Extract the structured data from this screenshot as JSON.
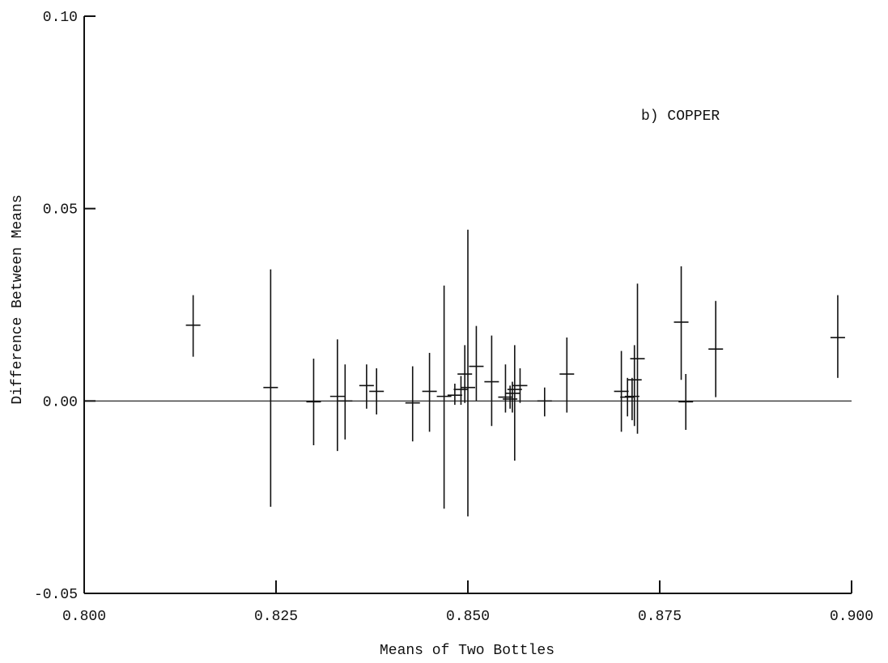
{
  "chart_data": {
    "type": "scatter",
    "title": "",
    "annotation": "b) COPPER",
    "xlabel": "Means of Two Bottles",
    "ylabel": "Difference Between Means",
    "xlim": [
      0.8,
      0.9
    ],
    "ylim": [
      -0.05,
      0.1
    ],
    "x_ticks": [
      0.8,
      0.825,
      0.85,
      0.875,
      0.9
    ],
    "x_tick_labels": [
      "0.800",
      "0.825",
      "0.850",
      "0.875",
      "0.900"
    ],
    "y_ticks": [
      -0.05,
      0.0,
      0.05,
      0.1
    ],
    "y_tick_labels": [
      "-0.05",
      "0.00",
      "0.05",
      "0.10"
    ],
    "reference_line_y": 0.0,
    "grid": false,
    "legend": "none",
    "points": [
      {
        "x": 0.8142,
        "y": 0.0197,
        "y_low": 0.0115,
        "y_high": 0.0275
      },
      {
        "x": 0.8243,
        "y": 0.0035,
        "y_low": -0.0275,
        "y_high": 0.0342
      },
      {
        "x": 0.8299,
        "y": -0.0002,
        "y_low": -0.0115,
        "y_high": 0.011
      },
      {
        "x": 0.833,
        "y": 0.0012,
        "y_low": -0.013,
        "y_high": 0.016
      },
      {
        "x": 0.834,
        "y": 0.0,
        "y_low": -0.01,
        "y_high": 0.0095
      },
      {
        "x": 0.8368,
        "y": 0.004,
        "y_low": -0.002,
        "y_high": 0.0095
      },
      {
        "x": 0.8381,
        "y": 0.0025,
        "y_low": -0.0035,
        "y_high": 0.0085
      },
      {
        "x": 0.8428,
        "y": -0.0005,
        "y_low": -0.0105,
        "y_high": 0.009
      },
      {
        "x": 0.845,
        "y": 0.0025,
        "y_low": -0.008,
        "y_high": 0.0125
      },
      {
        "x": 0.8469,
        "y": 0.0012,
        "y_low": -0.028,
        "y_high": 0.03
      },
      {
        "x": 0.8483,
        "y": 0.0015,
        "y_low": -0.001,
        "y_high": 0.0045
      },
      {
        "x": 0.8491,
        "y": 0.003,
        "y_low": -0.001,
        "y_high": 0.0065
      },
      {
        "x": 0.8496,
        "y": 0.007,
        "y_low": -0.0005,
        "y_high": 0.0145
      },
      {
        "x": 0.85,
        "y": 0.0035,
        "y_low": -0.03,
        "y_high": 0.0445
      },
      {
        "x": 0.8511,
        "y": 0.009,
        "y_low": 0.0,
        "y_high": 0.0195
      },
      {
        "x": 0.8531,
        "y": 0.005,
        "y_low": -0.0065,
        "y_high": 0.017
      },
      {
        "x": 0.8549,
        "y": 0.001,
        "y_low": -0.003,
        "y_high": 0.0095
      },
      {
        "x": 0.8555,
        "y": 0.0005,
        "y_low": -0.002,
        "y_high": 0.004
      },
      {
        "x": 0.8558,
        "y": 0.002,
        "y_low": -0.003,
        "y_high": 0.005
      },
      {
        "x": 0.8561,
        "y": 0.003,
        "y_low": -0.0155,
        "y_high": 0.0145
      },
      {
        "x": 0.8568,
        "y": 0.004,
        "y_low": -0.0005,
        "y_high": 0.0085
      },
      {
        "x": 0.86,
        "y": 0.0,
        "y_low": -0.004,
        "y_high": 0.0035
      },
      {
        "x": 0.8629,
        "y": 0.007,
        "y_low": -0.003,
        "y_high": 0.0165
      },
      {
        "x": 0.87,
        "y": 0.0025,
        "y_low": -0.008,
        "y_high": 0.013
      },
      {
        "x": 0.8708,
        "y": 0.001,
        "y_low": -0.004,
        "y_high": 0.006
      },
      {
        "x": 0.8714,
        "y": 0.0012,
        "y_low": -0.005,
        "y_high": 0.006
      },
      {
        "x": 0.8717,
        "y": 0.0055,
        "y_low": -0.0065,
        "y_high": 0.0145
      },
      {
        "x": 0.8721,
        "y": 0.011,
        "y_low": -0.0085,
        "y_high": 0.0305
      },
      {
        "x": 0.8778,
        "y": 0.0205,
        "y_low": 0.0055,
        "y_high": 0.035
      },
      {
        "x": 0.8784,
        "y": -0.0002,
        "y_low": -0.0075,
        "y_high": 0.007
      },
      {
        "x": 0.8823,
        "y": 0.0135,
        "y_low": 0.001,
        "y_high": 0.026
      },
      {
        "x": 0.8982,
        "y": 0.0165,
        "y_low": 0.006,
        "y_high": 0.0275
      }
    ]
  }
}
